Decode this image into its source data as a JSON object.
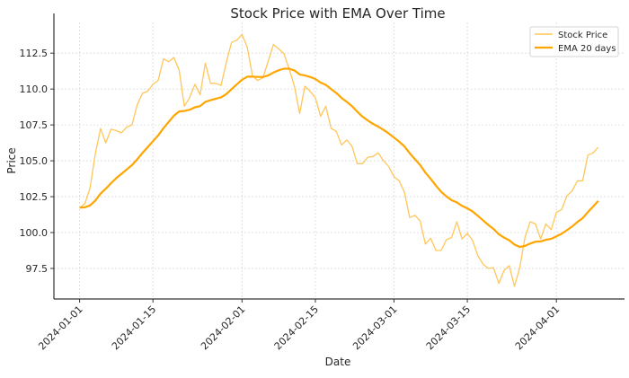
{
  "chart_data": {
    "type": "line",
    "title": "Stock Price with EMA Over Time",
    "xlabel": "Date",
    "ylabel": "Price",
    "grid": true,
    "legend_placement": "top-right",
    "ylim": [
      95.37,
      114.64
    ],
    "yticks": [
      97.5,
      100.0,
      102.5,
      105.0,
      107.5,
      110.0,
      112.5
    ],
    "ytick_labels": [
      "97.5",
      "100.0",
      "102.5",
      "105.0",
      "107.5",
      "110.0",
      "112.5"
    ],
    "xticks": [
      "2024-01-01",
      "2024-01-15",
      "2024-02-01",
      "2024-02-15",
      "2024-03-01",
      "2024-03-15",
      "2024-04-01"
    ],
    "x": [
      "2024-01-01",
      "2024-01-02",
      "2024-01-03",
      "2024-01-04",
      "2024-01-05",
      "2024-01-06",
      "2024-01-07",
      "2024-01-08",
      "2024-01-09",
      "2024-01-10",
      "2024-01-11",
      "2024-01-12",
      "2024-01-13",
      "2024-01-14",
      "2024-01-15",
      "2024-01-16",
      "2024-01-17",
      "2024-01-18",
      "2024-01-19",
      "2024-01-20",
      "2024-01-21",
      "2024-01-22",
      "2024-01-23",
      "2024-01-24",
      "2024-01-25",
      "2024-01-26",
      "2024-01-27",
      "2024-01-28",
      "2024-01-29",
      "2024-01-30",
      "2024-01-31",
      "2024-02-01",
      "2024-02-02",
      "2024-02-03",
      "2024-02-04",
      "2024-02-05",
      "2024-02-06",
      "2024-02-07",
      "2024-02-08",
      "2024-02-09",
      "2024-02-10",
      "2024-02-11",
      "2024-02-12",
      "2024-02-13",
      "2024-02-14",
      "2024-02-15",
      "2024-02-16",
      "2024-02-17",
      "2024-02-18",
      "2024-02-19",
      "2024-02-20",
      "2024-02-21",
      "2024-02-22",
      "2024-02-23",
      "2024-02-24",
      "2024-02-25",
      "2024-02-26",
      "2024-02-27",
      "2024-02-28",
      "2024-02-29",
      "2024-03-01",
      "2024-03-02",
      "2024-03-03",
      "2024-03-04",
      "2024-03-05",
      "2024-03-06",
      "2024-03-07",
      "2024-03-08",
      "2024-03-09",
      "2024-03-10",
      "2024-03-11",
      "2024-03-12",
      "2024-03-13",
      "2024-03-14",
      "2024-03-15",
      "2024-03-16",
      "2024-03-17",
      "2024-03-18",
      "2024-03-19",
      "2024-03-20",
      "2024-03-21",
      "2024-03-22",
      "2024-03-23",
      "2024-03-24",
      "2024-03-25",
      "2024-03-26",
      "2024-03-27",
      "2024-03-28",
      "2024-03-29",
      "2024-03-30",
      "2024-03-31",
      "2024-04-01",
      "2024-04-02",
      "2024-04-03",
      "2024-04-04",
      "2024-04-05",
      "2024-04-06",
      "2024-04-07",
      "2024-04-08",
      "2024-04-09"
    ],
    "series": [
      {
        "name": "Stock Price",
        "color": "#ffc65a",
        "values": [
          101.73,
          102.0,
          103.1,
          105.5,
          107.25,
          106.25,
          107.2,
          107.1,
          106.95,
          107.35,
          107.5,
          108.9,
          109.7,
          109.85,
          110.33,
          110.6,
          112.1,
          111.9,
          112.2,
          111.3,
          108.8,
          109.4,
          110.33,
          109.6,
          111.8,
          110.4,
          110.4,
          110.25,
          111.85,
          113.25,
          113.4,
          113.8,
          112.9,
          110.9,
          110.6,
          110.8,
          111.95,
          113.1,
          112.8,
          112.45,
          111.4,
          110.2,
          108.3,
          110.2,
          109.85,
          109.4,
          108.1,
          108.8,
          107.25,
          107.05,
          106.1,
          106.45,
          106.0,
          104.8,
          104.8,
          105.25,
          105.3,
          105.55,
          105.0,
          104.6,
          103.9,
          103.6,
          102.8,
          101.05,
          101.2,
          100.8,
          99.2,
          99.6,
          98.75,
          98.75,
          99.5,
          99.65,
          100.75,
          99.55,
          99.95,
          99.45,
          98.4,
          97.8,
          97.5,
          97.55,
          96.45,
          97.35,
          97.7,
          96.25,
          97.55,
          99.65,
          100.75,
          100.6,
          99.55,
          100.6,
          100.2,
          101.4,
          101.6,
          102.55,
          102.9,
          103.6,
          103.6,
          105.4,
          105.55,
          105.95
        ]
      },
      {
        "name": "EMA 20 days",
        "color": "#ffa500",
        "values": [
          101.73,
          101.76,
          101.89,
          102.23,
          102.71,
          103.05,
          103.44,
          103.79,
          104.09,
          104.4,
          104.7,
          105.1,
          105.54,
          105.95,
          106.36,
          106.77,
          107.27,
          107.71,
          108.14,
          108.44,
          108.47,
          108.56,
          108.73,
          108.81,
          109.1,
          109.22,
          109.33,
          109.42,
          109.65,
          109.99,
          110.32,
          110.65,
          110.86,
          110.87,
          110.84,
          110.84,
          110.95,
          111.15,
          111.31,
          111.42,
          111.42,
          111.3,
          111.02,
          110.94,
          110.84,
          110.7,
          110.45,
          110.29,
          110.0,
          109.72,
          109.38,
          109.1,
          108.8,
          108.42,
          108.08,
          107.81,
          107.57,
          107.38,
          107.15,
          106.91,
          106.62,
          106.33,
          106.0,
          105.53,
          105.11,
          104.7,
          104.18,
          103.74,
          103.27,
          102.84,
          102.52,
          102.25,
          102.1,
          101.86,
          101.68,
          101.47,
          101.17,
          100.85,
          100.53,
          100.25,
          99.89,
          99.65,
          99.46,
          99.16,
          99.0,
          99.07,
          99.23,
          99.36,
          99.38,
          99.49,
          99.56,
          99.74,
          99.91,
          100.16,
          100.42,
          100.73,
          101.0,
          101.42,
          101.81,
          102.21
        ]
      }
    ]
  }
}
